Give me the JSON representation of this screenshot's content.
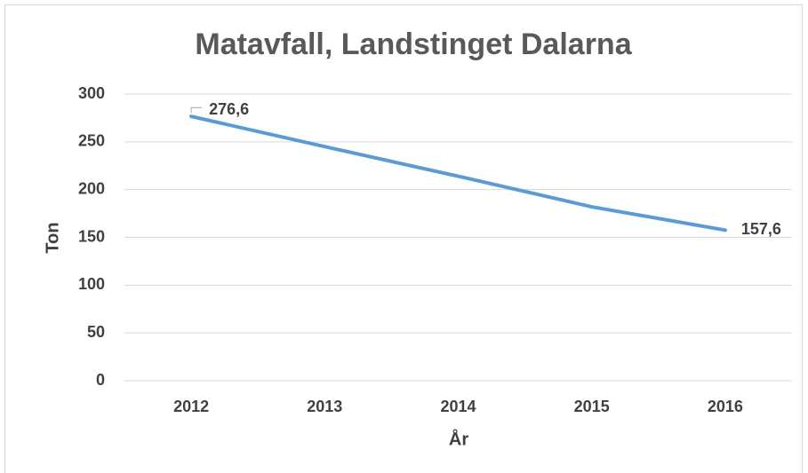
{
  "chart_data": {
    "type": "line",
    "title": "Matavfall, Landstinget Dalarna",
    "x_label": "År",
    "y_label": "Ton",
    "categories": [
      "2012",
      "2013",
      "2014",
      "2015",
      "2016"
    ],
    "series": [
      {
        "name": "Matavfall",
        "color": "#5b9bd5",
        "values": [
          276.6,
          245,
          214,
          182,
          157.6
        ],
        "value_labels": [
          "276,6",
          null,
          null,
          null,
          "157,6"
        ]
      }
    ],
    "ylim": [
      0,
      300
    ],
    "yticks": [
      0,
      50,
      100,
      150,
      200,
      250,
      300
    ],
    "grid": true
  }
}
